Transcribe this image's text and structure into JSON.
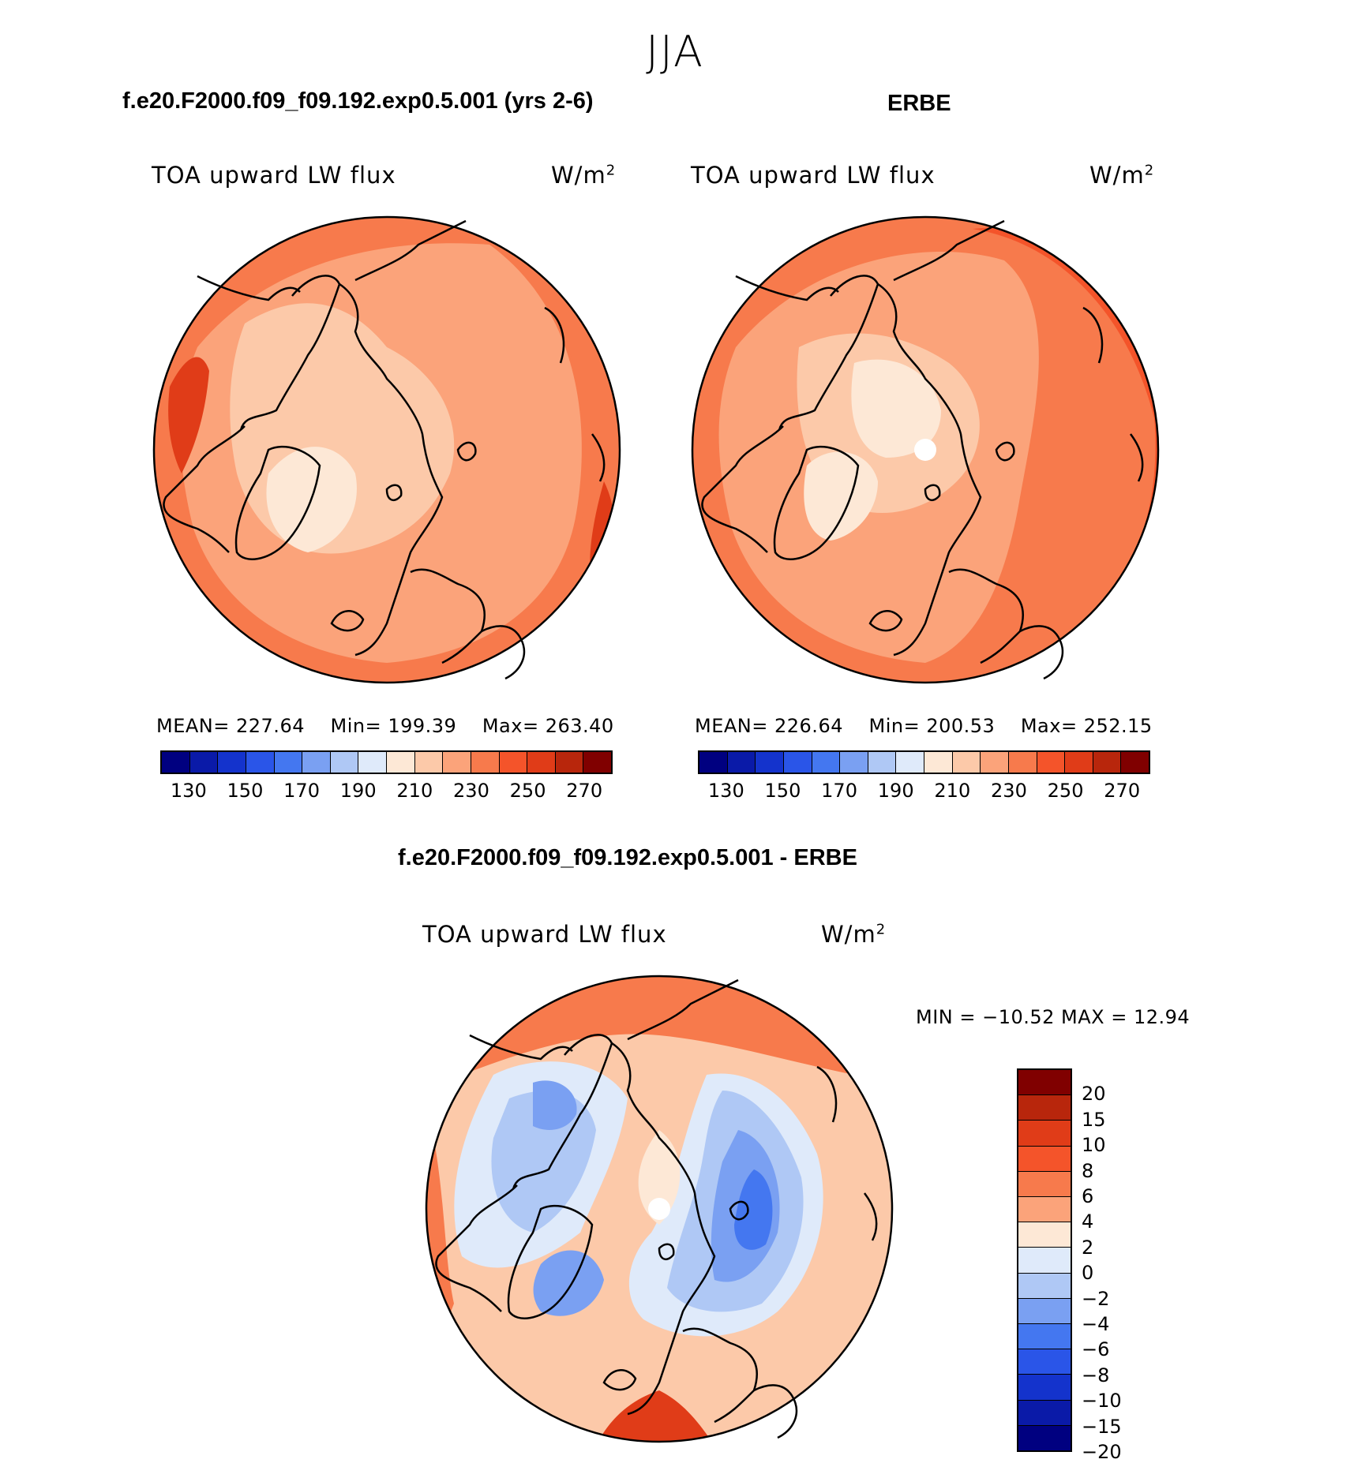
{
  "figure": {
    "season": "JJA"
  },
  "panels": [
    {
      "id": "model",
      "title": "f.e20.F2000.f09_f09.192.exp0.5.001 (yrs 2-6)",
      "variable": "TOA upward LW flux",
      "units_base": "W/m",
      "units_exp": "2",
      "stats": {
        "mean_label": "MEAN=",
        "mean": "227.64",
        "min_label": "Min=",
        "min": "199.39",
        "max_label": "Max=",
        "max": "263.40"
      }
    },
    {
      "id": "obs",
      "title": "ERBE",
      "variable": "TOA upward LW flux",
      "units_base": "W/m",
      "units_exp": "2",
      "stats": {
        "mean_label": "MEAN=",
        "mean": "226.64",
        "min_label": "Min=",
        "min": "200.53",
        "max_label": "Max=",
        "max": "252.15"
      }
    },
    {
      "id": "diff",
      "title": "f.e20.F2000.f09_f09.192.exp0.5.001 - ERBE",
      "variable": "TOA upward LW flux",
      "units_base": "W/m",
      "units_exp": "2",
      "stats_text": "MIN = −10.52 MAX =   12.94"
    }
  ],
  "colorbar_abs": {
    "colors": [
      "#000080",
      "#0a1aa8",
      "#1433cc",
      "#2a55e8",
      "#4477f0",
      "#7aa0f2",
      "#afc8f5",
      "#dfeafa",
      "#fde8d6",
      "#fcc9a9",
      "#fba37a",
      "#f77a4c",
      "#f4542a",
      "#e03c18",
      "#b8260c",
      "#800000"
    ],
    "tick_labels": [
      "130",
      "150",
      "170",
      "190",
      "210",
      "230",
      "250",
      "270"
    ]
  },
  "colorbar_diff": {
    "colors": [
      "#800000",
      "#b8260c",
      "#e03c18",
      "#f4542a",
      "#f77a4c",
      "#fba37a",
      "#fde8d6",
      "#dfeafa",
      "#afc8f5",
      "#7aa0f2",
      "#4477f0",
      "#2a55e8",
      "#1433cc",
      "#0a1aa8",
      "#000080"
    ],
    "tick_labels": [
      "20",
      "15",
      "10",
      "8",
      "6",
      "4",
      "2",
      "0",
      "−2",
      "−4",
      "−6",
      "−8",
      "−10",
      "−15",
      "−20"
    ]
  }
}
